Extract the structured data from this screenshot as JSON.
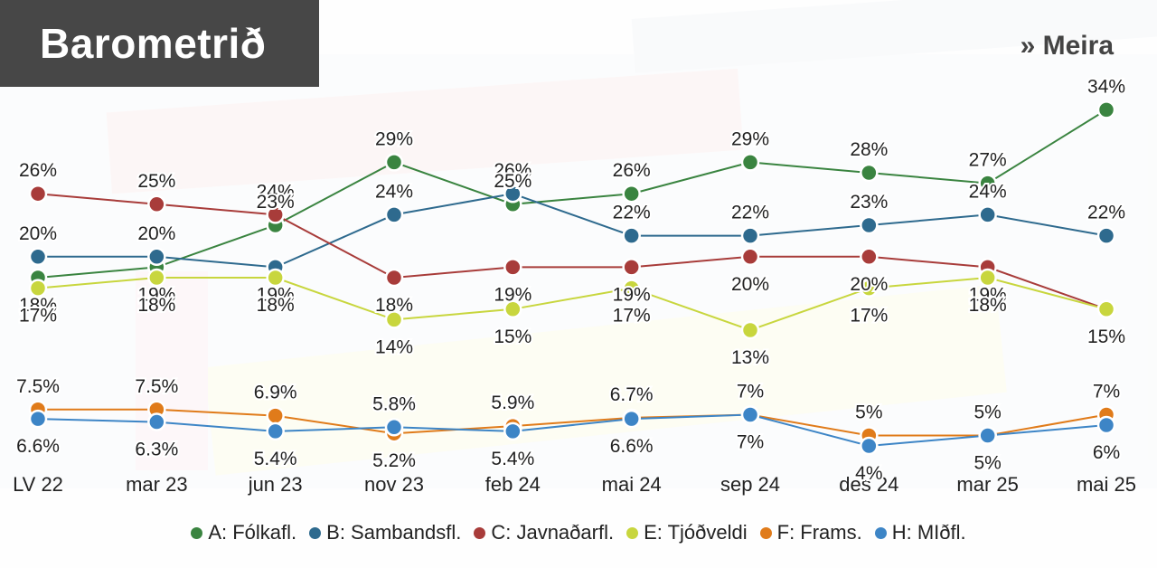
{
  "header": {
    "title": "Barometrið",
    "more_label": "» Meira"
  },
  "chart_data": {
    "type": "line",
    "categories": [
      "LV 22",
      "mar 23",
      "jun 23",
      "nov 23",
      "feb 24",
      "mai 24",
      "sep 24",
      "des 24",
      "mar 25",
      "mai 25"
    ],
    "ylim": [
      0,
      36
    ],
    "grid": false,
    "legend_position": "bottom",
    "series": [
      {
        "name": "A: Fólkafl.",
        "color": "#3a8440",
        "values": [
          18,
          19,
          23,
          29,
          25,
          26,
          29,
          28,
          27,
          34
        ],
        "labels": [
          "18%",
          "19%",
          "23%",
          "29%",
          "25%",
          "26%",
          "29%",
          "28%",
          "27%",
          "34%"
        ]
      },
      {
        "name": "B: Sambandsfl.",
        "color": "#2e6a8e",
        "values": [
          20,
          20,
          19,
          24,
          26,
          22,
          22,
          23,
          24,
          22
        ],
        "labels": [
          "20%",
          "20%",
          "19%",
          "24%",
          "26%",
          "22%",
          "22%",
          "23%",
          "24%",
          "22%"
        ]
      },
      {
        "name": "C: Javnaðarfl.",
        "color": "#a83c3a",
        "values": [
          26,
          25,
          24,
          18,
          19,
          19,
          20,
          20,
          19,
          15
        ],
        "labels": [
          "26%",
          "25%",
          "24%",
          "18%",
          "19%",
          "19%",
          "20%",
          "20%",
          "19%",
          "15%"
        ]
      },
      {
        "name": "E: Tjóðveldi",
        "color": "#c8d63e",
        "values": [
          17,
          18,
          18,
          14,
          15,
          17,
          13,
          17,
          18,
          15
        ],
        "labels": [
          "17%",
          "18%",
          "18%",
          "14%",
          "15%",
          "17%",
          "13%",
          "17%",
          "18%",
          "15%"
        ]
      },
      {
        "name": "F: Frams.",
        "color": "#e07b1a",
        "values": [
          7.5,
          7.5,
          6.9,
          5.2,
          5.9,
          6.7,
          7,
          5,
          5,
          7
        ],
        "labels": [
          "7.5%",
          "7.5%",
          "6.9%",
          "5.2%",
          "5.9%",
          "6.7%",
          "7%",
          "5%",
          "5%",
          "7%"
        ]
      },
      {
        "name": "H: MIðfl.",
        "color": "#3d85c6",
        "values": [
          6.6,
          6.3,
          5.4,
          5.8,
          5.4,
          6.6,
          7,
          4,
          5,
          6
        ],
        "labels": [
          "6.6%",
          "6.3%",
          "5.4%",
          "5.8%",
          "5.4%",
          "6.6%",
          "7%",
          "4%",
          "5%",
          "6%"
        ]
      }
    ]
  }
}
